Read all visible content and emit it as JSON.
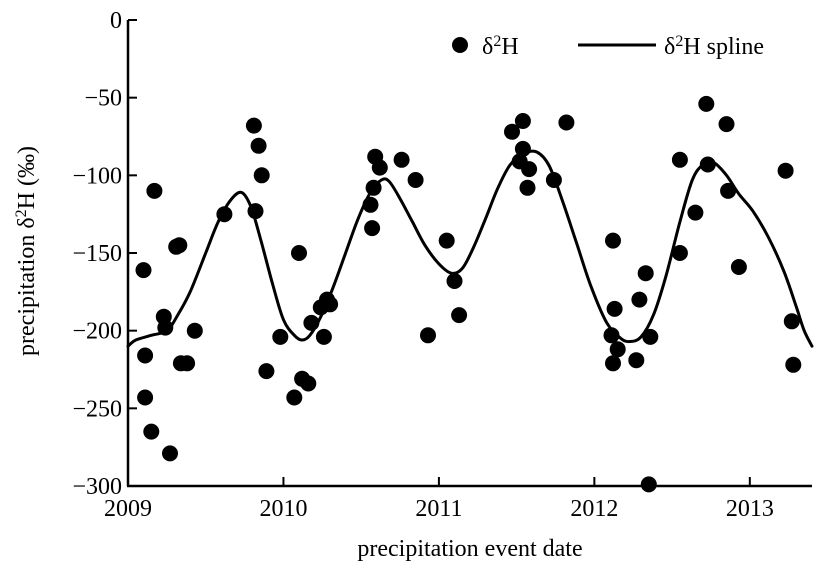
{
  "chart_data": {
    "type": "scatter",
    "xlabel": "precipitation event date",
    "ylabel_main": "precipitation  δ",
    "ylabel_sup": "2",
    "ylabel_rest": "H (‰)",
    "xlim": [
      2009.0,
      2013.4
    ],
    "ylim": [
      -300,
      0
    ],
    "x_ticks": [
      2009,
      2010,
      2011,
      2012,
      2013
    ],
    "x_tick_labels": [
      "2009",
      "2010",
      "2011",
      "2012",
      "2013"
    ],
    "y_ticks": [
      0,
      -50,
      -100,
      -150,
      -200,
      -250,
      -300
    ],
    "y_tick_labels": [
      "0",
      "−50",
      "−100",
      "−150",
      "−200",
      "−250",
      "−300"
    ],
    "grid": false,
    "legend_position": "top-right",
    "legend": [
      {
        "symbol": "dot",
        "prefix": "δ",
        "sup": "2",
        "suffix": "H"
      },
      {
        "symbol": "line",
        "prefix": "δ",
        "sup": "2",
        "suffix": "H spline"
      }
    ],
    "series": [
      {
        "name": "δ2H",
        "kind": "points",
        "color": "#000000",
        "points": [
          [
            2009.1,
            -161
          ],
          [
            2009.11,
            -216
          ],
          [
            2009.11,
            -243
          ],
          [
            2009.15,
            -265
          ],
          [
            2009.17,
            -110
          ],
          [
            2009.23,
            -191
          ],
          [
            2009.24,
            -198
          ],
          [
            2009.27,
            -279
          ],
          [
            2009.31,
            -146
          ],
          [
            2009.33,
            -145
          ],
          [
            2009.34,
            -221
          ],
          [
            2009.38,
            -221
          ],
          [
            2009.43,
            -200
          ],
          [
            2009.62,
            -125
          ],
          [
            2009.81,
            -68
          ],
          [
            2009.82,
            -123
          ],
          [
            2009.84,
            -81
          ],
          [
            2009.86,
            -100
          ],
          [
            2009.89,
            -226
          ],
          [
            2009.98,
            -204
          ],
          [
            2010.07,
            -243
          ],
          [
            2010.1,
            -150
          ],
          [
            2010.12,
            -231
          ],
          [
            2010.16,
            -234
          ],
          [
            2010.18,
            -195
          ],
          [
            2010.24,
            -185
          ],
          [
            2010.26,
            -204
          ],
          [
            2010.28,
            -180
          ],
          [
            2010.3,
            -183
          ],
          [
            2010.56,
            -119
          ],
          [
            2010.57,
            -134
          ],
          [
            2010.58,
            -108
          ],
          [
            2010.59,
            -88
          ],
          [
            2010.62,
            -95
          ],
          [
            2010.76,
            -90
          ],
          [
            2010.85,
            -103
          ],
          [
            2010.93,
            -203
          ],
          [
            2011.05,
            -142
          ],
          [
            2011.1,
            -168
          ],
          [
            2011.13,
            -190
          ],
          [
            2011.47,
            -72
          ],
          [
            2011.52,
            -91
          ],
          [
            2011.54,
            -83
          ],
          [
            2011.54,
            -65
          ],
          [
            2011.57,
            -108
          ],
          [
            2011.58,
            -96
          ],
          [
            2011.74,
            -103
          ],
          [
            2011.82,
            -66
          ],
          [
            2012.11,
            -203
          ],
          [
            2012.12,
            -221
          ],
          [
            2012.12,
            -142
          ],
          [
            2012.13,
            -186
          ],
          [
            2012.15,
            -212
          ],
          [
            2012.27,
            -219
          ],
          [
            2012.29,
            -180
          ],
          [
            2012.33,
            -163
          ],
          [
            2012.35,
            -299
          ],
          [
            2012.36,
            -204
          ],
          [
            2012.55,
            -90
          ],
          [
            2012.55,
            -150
          ],
          [
            2012.65,
            -124
          ],
          [
            2012.72,
            -54
          ],
          [
            2012.73,
            -93
          ],
          [
            2012.85,
            -67
          ],
          [
            2012.86,
            -110
          ],
          [
            2012.93,
            -159
          ],
          [
            2013.23,
            -97
          ],
          [
            2013.27,
            -194
          ],
          [
            2013.28,
            -222
          ]
        ]
      },
      {
        "name": "δ2H spline",
        "kind": "line",
        "color": "#000000",
        "points": [
          [
            2009.0,
            -210
          ],
          [
            2009.05,
            -206
          ],
          [
            2009.15,
            -203
          ],
          [
            2009.25,
            -200
          ],
          [
            2009.32,
            -190
          ],
          [
            2009.4,
            -175
          ],
          [
            2009.5,
            -150
          ],
          [
            2009.58,
            -130
          ],
          [
            2009.66,
            -116
          ],
          [
            2009.73,
            -111
          ],
          [
            2009.79,
            -120
          ],
          [
            2009.85,
            -140
          ],
          [
            2009.93,
            -170
          ],
          [
            2010.0,
            -193
          ],
          [
            2010.07,
            -203
          ],
          [
            2010.12,
            -206
          ],
          [
            2010.17,
            -203
          ],
          [
            2010.24,
            -191
          ],
          [
            2010.32,
            -172
          ],
          [
            2010.4,
            -150
          ],
          [
            2010.48,
            -128
          ],
          [
            2010.56,
            -111
          ],
          [
            2010.63,
            -103
          ],
          [
            2010.68,
            -104
          ],
          [
            2010.75,
            -115
          ],
          [
            2010.83,
            -130
          ],
          [
            2010.91,
            -145
          ],
          [
            2011.0,
            -157
          ],
          [
            2011.08,
            -163
          ],
          [
            2011.15,
            -160
          ],
          [
            2011.22,
            -147
          ],
          [
            2011.3,
            -128
          ],
          [
            2011.38,
            -108
          ],
          [
            2011.46,
            -93
          ],
          [
            2011.55,
            -86
          ],
          [
            2011.63,
            -85
          ],
          [
            2011.71,
            -94
          ],
          [
            2011.8,
            -118
          ],
          [
            2011.89,
            -145
          ],
          [
            2011.98,
            -172
          ],
          [
            2012.08,
            -195
          ],
          [
            2012.17,
            -205
          ],
          [
            2012.23,
            -207
          ],
          [
            2012.3,
            -204
          ],
          [
            2012.38,
            -190
          ],
          [
            2012.46,
            -165
          ],
          [
            2012.55,
            -130
          ],
          [
            2012.63,
            -103
          ],
          [
            2012.7,
            -93
          ],
          [
            2012.77,
            -92
          ],
          [
            2012.85,
            -100
          ],
          [
            2012.93,
            -112
          ],
          [
            2013.02,
            -123
          ],
          [
            2013.12,
            -140
          ],
          [
            2013.22,
            -162
          ],
          [
            2013.3,
            -185
          ],
          [
            2013.35,
            -200
          ],
          [
            2013.4,
            -210
          ]
        ]
      }
    ]
  }
}
